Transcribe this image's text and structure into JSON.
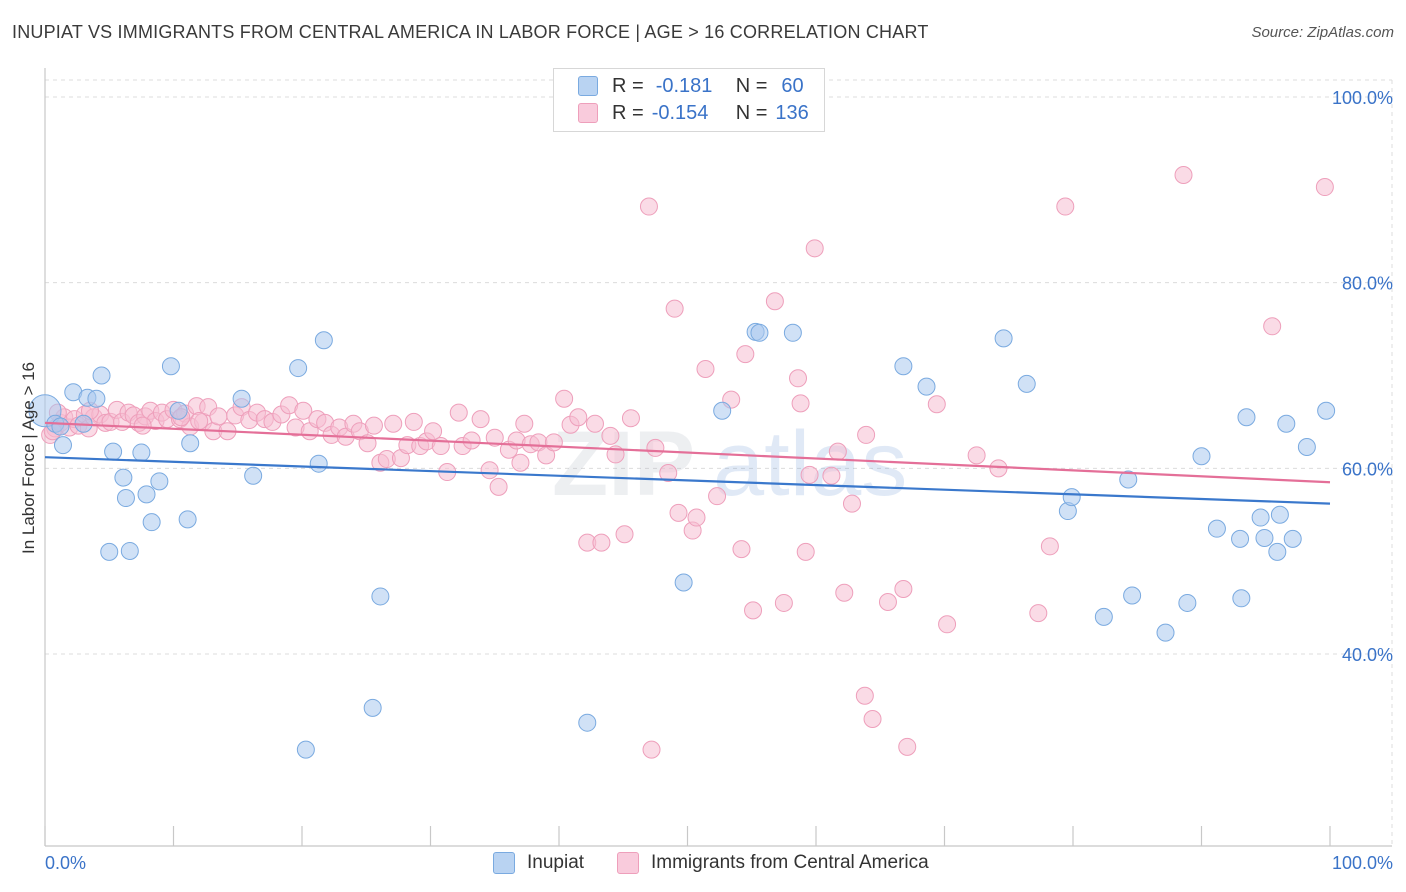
{
  "header": {
    "title": "INUPIAT VS IMMIGRANTS FROM CENTRAL AMERICA IN LABOR FORCE | AGE > 16 CORRELATION CHART",
    "source": "Source: ZipAtlas.com"
  },
  "colors": {
    "blue_fill": "#a9c9ee",
    "blue_stroke": "#7aaae0",
    "blue_line": "#3a78cc",
    "pink_fill": "#f6bdd1",
    "pink_stroke": "#ee9fbb",
    "pink_line": "#e46f98",
    "axis_text": "#3a73c8",
    "grid": "#dcdcdc"
  },
  "legend": {
    "row1": {
      "r_label": "R =",
      "r_value": "-0.181",
      "n_label": "N =",
      "n_value": "60"
    },
    "row2": {
      "r_label": "R =",
      "r_value": "-0.154",
      "n_label": "N =",
      "n_value": "136"
    }
  },
  "bottom_legend": {
    "series1": "Inupiat",
    "series2": "Immigrants from Central America"
  },
  "watermark": {
    "part1": "ZIP",
    "part2": "atlas"
  },
  "chart_data": {
    "type": "scatter",
    "title": "INUPIAT VS IMMIGRANTS FROM CENTRAL AMERICA IN LABOR FORCE | AGE > 16 CORRELATION CHART",
    "xlabel": "",
    "ylabel": "In Labor Force | Age > 16",
    "xlim": [
      0,
      100
    ],
    "ylim": [
      20,
      102
    ],
    "x_tick_labels": [
      "0.0%",
      "100.0%"
    ],
    "y_ticks": [
      40,
      60,
      80,
      100
    ],
    "y_tick_labels": [
      "40.0%",
      "60.0%",
      "80.0%",
      "100.0%"
    ],
    "grid": true,
    "series": [
      {
        "name": "Inupiat",
        "color": "#a9c9ee",
        "trend": {
          "x": [
            0,
            100
          ],
          "y": [
            61.2,
            56.2
          ]
        },
        "points": [
          [
            0,
            66.2
          ],
          [
            0.8,
            64.8
          ],
          [
            1.4,
            62.5
          ],
          [
            2.2,
            68.2
          ],
          [
            3.3,
            67.6
          ],
          [
            3.0,
            64.8
          ],
          [
            4.0,
            67.5
          ],
          [
            4.4,
            70.0
          ],
          [
            5.0,
            51.0
          ],
          [
            5.3,
            61.8
          ],
          [
            6.1,
            59.0
          ],
          [
            6.3,
            56.8
          ],
          [
            6.6,
            51.1
          ],
          [
            7.5,
            61.7
          ],
          [
            7.9,
            57.2
          ],
          [
            8.3,
            54.2
          ],
          [
            8.9,
            58.6
          ],
          [
            9.8,
            71.0
          ],
          [
            10.4,
            66.2
          ],
          [
            11.1,
            54.5
          ],
          [
            11.3,
            62.7
          ],
          [
            15.3,
            67.5
          ],
          [
            16.2,
            59.2
          ],
          [
            19.7,
            70.8
          ],
          [
            20.3,
            29.7
          ],
          [
            21.3,
            60.5
          ],
          [
            21.7,
            73.8
          ],
          [
            25.5,
            34.2
          ],
          [
            26.1,
            46.2
          ],
          [
            42.2,
            32.6
          ],
          [
            49.7,
            47.7
          ],
          [
            52.7,
            66.2
          ],
          [
            55.3,
            74.7
          ],
          [
            55.6,
            74.6
          ],
          [
            58.2,
            74.6
          ],
          [
            66.8,
            71.0
          ],
          [
            68.6,
            68.8
          ],
          [
            74.6,
            74.0
          ],
          [
            76.4,
            69.1
          ],
          [
            79.6,
            55.4
          ],
          [
            79.9,
            56.9
          ],
          [
            82.4,
            44.0
          ],
          [
            84.3,
            58.8
          ],
          [
            84.6,
            46.3
          ],
          [
            87.2,
            42.3
          ],
          [
            88.9,
            45.5
          ],
          [
            90.0,
            61.3
          ],
          [
            91.2,
            53.5
          ],
          [
            93.0,
            52.4
          ],
          [
            93.1,
            46.0
          ],
          [
            93.5,
            65.5
          ],
          [
            94.6,
            54.7
          ],
          [
            94.9,
            52.5
          ],
          [
            95.9,
            51.0
          ],
          [
            96.1,
            55.0
          ],
          [
            96.6,
            64.8
          ],
          [
            97.1,
            52.4
          ],
          [
            98.2,
            62.3
          ],
          [
            99.7,
            66.2
          ],
          [
            1.2,
            64.5
          ]
        ]
      },
      {
        "name": "Immigrants from Central America",
        "color": "#f6bdd1",
        "trend": {
          "x": [
            0,
            100
          ],
          "y": [
            64.9,
            58.5
          ]
        },
        "points": [
          [
            0.4,
            63.6
          ],
          [
            0.8,
            64.3
          ],
          [
            1.2,
            64.9
          ],
          [
            1.5,
            65.5
          ],
          [
            1.9,
            64.4
          ],
          [
            2.3,
            65.3
          ],
          [
            2.6,
            64.6
          ],
          [
            3.1,
            65.8
          ],
          [
            3.4,
            64.3
          ],
          [
            3.8,
            65.5
          ],
          [
            4.3,
            65.8
          ],
          [
            4.7,
            64.9
          ],
          [
            5.1,
            65.0
          ],
          [
            5.6,
            66.3
          ],
          [
            6.0,
            65.0
          ],
          [
            6.5,
            66.0
          ],
          [
            6.9,
            65.7
          ],
          [
            7.3,
            64.9
          ],
          [
            7.8,
            65.6
          ],
          [
            8.2,
            66.2
          ],
          [
            8.6,
            65.1
          ],
          [
            9.1,
            66.0
          ],
          [
            9.5,
            65.3
          ],
          [
            10.0,
            66.3
          ],
          [
            10.5,
            65.3
          ],
          [
            10.9,
            65.9
          ],
          [
            11.3,
            64.5
          ],
          [
            11.8,
            66.7
          ],
          [
            12.3,
            65.0
          ],
          [
            12.7,
            66.6
          ],
          [
            13.1,
            64.0
          ],
          [
            13.5,
            65.6
          ],
          [
            14.2,
            64.0
          ],
          [
            14.8,
            65.7
          ],
          [
            15.3,
            66.6
          ],
          [
            15.9,
            65.2
          ],
          [
            16.5,
            66.0
          ],
          [
            17.1,
            65.3
          ],
          [
            17.7,
            65.0
          ],
          [
            18.4,
            65.8
          ],
          [
            19.0,
            66.8
          ],
          [
            19.5,
            64.4
          ],
          [
            20.1,
            66.2
          ],
          [
            20.6,
            64.0
          ],
          [
            21.2,
            65.3
          ],
          [
            21.8,
            64.9
          ],
          [
            22.3,
            63.6
          ],
          [
            22.9,
            64.4
          ],
          [
            23.4,
            63.4
          ],
          [
            24.0,
            64.8
          ],
          [
            24.5,
            64.0
          ],
          [
            25.1,
            62.7
          ],
          [
            25.6,
            64.6
          ],
          [
            26.1,
            60.6
          ],
          [
            26.6,
            61.0
          ],
          [
            27.1,
            64.8
          ],
          [
            27.7,
            61.1
          ],
          [
            28.2,
            62.5
          ],
          [
            28.7,
            65.0
          ],
          [
            29.2,
            62.4
          ],
          [
            29.7,
            62.9
          ],
          [
            30.2,
            64.0
          ],
          [
            30.8,
            62.4
          ],
          [
            31.3,
            59.6
          ],
          [
            32.2,
            66.0
          ],
          [
            32.5,
            62.4
          ],
          [
            33.2,
            63.0
          ],
          [
            33.9,
            65.3
          ],
          [
            34.6,
            59.8
          ],
          [
            35.0,
            63.3
          ],
          [
            35.3,
            58.0
          ],
          [
            36.1,
            62.0
          ],
          [
            36.7,
            63.0
          ],
          [
            37.3,
            64.8
          ],
          [
            37.8,
            62.6
          ],
          [
            38.4,
            62.8
          ],
          [
            39.0,
            61.4
          ],
          [
            39.6,
            62.8
          ],
          [
            40.4,
            67.5
          ],
          [
            40.9,
            64.7
          ],
          [
            41.5,
            65.5
          ],
          [
            42.2,
            52.0
          ],
          [
            42.8,
            64.8
          ],
          [
            43.3,
            52.0
          ],
          [
            44.0,
            63.5
          ],
          [
            44.4,
            61.5
          ],
          [
            45.1,
            52.9
          ],
          [
            45.6,
            65.4
          ],
          [
            47.0,
            88.2
          ],
          [
            47.5,
            62.2
          ],
          [
            48.5,
            59.5
          ],
          [
            49.0,
            77.2
          ],
          [
            49.3,
            55.2
          ],
          [
            50.4,
            53.3
          ],
          [
            50.7,
            54.7
          ],
          [
            51.4,
            70.7
          ],
          [
            52.3,
            57.0
          ],
          [
            53.4,
            67.4
          ],
          [
            54.2,
            51.3
          ],
          [
            54.5,
            72.3
          ],
          [
            55.1,
            44.7
          ],
          [
            56.8,
            78.0
          ],
          [
            57.5,
            45.5
          ],
          [
            58.6,
            69.7
          ],
          [
            58.8,
            67.0
          ],
          [
            59.2,
            51.0
          ],
          [
            59.5,
            59.3
          ],
          [
            59.9,
            83.7
          ],
          [
            61.2,
            59.2
          ],
          [
            61.7,
            61.8
          ],
          [
            62.2,
            46.6
          ],
          [
            62.8,
            56.2
          ],
          [
            63.8,
            35.5
          ],
          [
            63.9,
            63.6
          ],
          [
            64.4,
            33.0
          ],
          [
            65.6,
            45.6
          ],
          [
            66.8,
            47.0
          ],
          [
            67.1,
            30.0
          ],
          [
            69.4,
            66.9
          ],
          [
            70.2,
            43.2
          ],
          [
            72.5,
            61.4
          ],
          [
            74.2,
            60.0
          ],
          [
            77.3,
            44.4
          ],
          [
            78.2,
            51.6
          ],
          [
            79.4,
            88.2
          ],
          [
            88.6,
            91.6
          ],
          [
            95.5,
            75.3
          ],
          [
            99.6,
            90.3
          ],
          [
            0.6,
            64.0
          ],
          [
            1.0,
            66.0
          ],
          [
            3.5,
            66.2
          ],
          [
            7.6,
            64.6
          ],
          [
            12.0,
            65.1
          ],
          [
            37.0,
            60.6
          ],
          [
            47.2,
            29.7
          ],
          [
            10.6,
            65.5
          ]
        ]
      }
    ]
  }
}
